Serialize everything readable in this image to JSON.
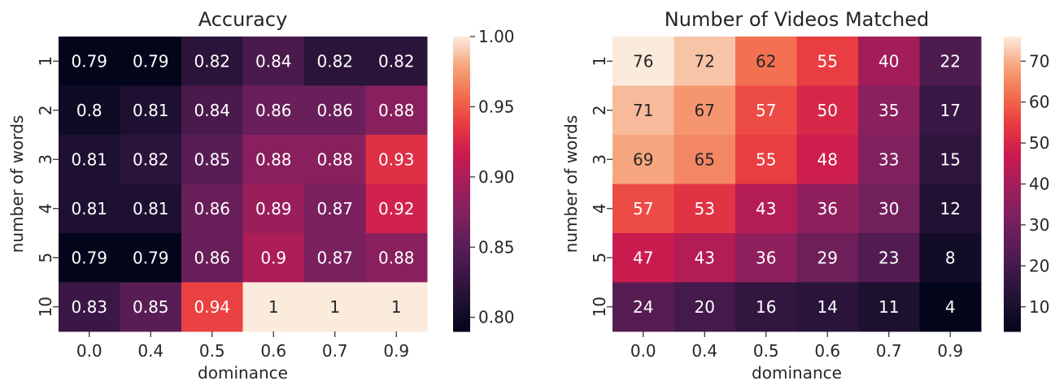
{
  "chart_data": [
    {
      "type": "heatmap",
      "title": "Accuracy",
      "xlabel": "dominance",
      "ylabel": "number of words",
      "x_categories": [
        "0.0",
        "0.4",
        "0.5",
        "0.6",
        "0.7",
        "0.9"
      ],
      "y_categories": [
        "1",
        "2",
        "3",
        "4",
        "5",
        "10"
      ],
      "values": [
        [
          0.79,
          0.79,
          0.82,
          0.84,
          0.82,
          0.82
        ],
        [
          0.8,
          0.81,
          0.84,
          0.86,
          0.86,
          0.88
        ],
        [
          0.81,
          0.82,
          0.85,
          0.88,
          0.88,
          0.93
        ],
        [
          0.81,
          0.81,
          0.86,
          0.89,
          0.87,
          0.92
        ],
        [
          0.79,
          0.79,
          0.86,
          0.9,
          0.87,
          0.88
        ],
        [
          0.83,
          0.85,
          0.94,
          1,
          1,
          1
        ]
      ],
      "colorbar_range": [
        0.79,
        1.0
      ],
      "colorbar_ticks": [
        "0.80",
        "0.85",
        "0.90",
        "0.95",
        "1.00"
      ],
      "colorbar_tick_values": [
        0.8,
        0.85,
        0.9,
        0.95,
        1.0
      ],
      "colormap": "rocket",
      "annotations": true
    },
    {
      "type": "heatmap",
      "title": "Number of Videos Matched",
      "xlabel": "dominance",
      "ylabel": "number of words",
      "x_categories": [
        "0.0",
        "0.4",
        "0.5",
        "0.6",
        "0.7",
        "0.9"
      ],
      "y_categories": [
        "1",
        "2",
        "3",
        "4",
        "5",
        "10"
      ],
      "values": [
        [
          76,
          72,
          62,
          55,
          40,
          22
        ],
        [
          71,
          67,
          57,
          50,
          35,
          17
        ],
        [
          69,
          65,
          55,
          48,
          33,
          15
        ],
        [
          57,
          53,
          43,
          36,
          30,
          12
        ],
        [
          47,
          43,
          36,
          29,
          23,
          8
        ],
        [
          24,
          20,
          16,
          14,
          11,
          4
        ]
      ],
      "colorbar_range": [
        4,
        76
      ],
      "colorbar_ticks": [
        "10",
        "20",
        "30",
        "40",
        "50",
        "60",
        "70"
      ],
      "colorbar_tick_values": [
        10,
        20,
        30,
        40,
        50,
        60,
        70
      ],
      "colormap": "rocket",
      "annotations": true
    }
  ]
}
